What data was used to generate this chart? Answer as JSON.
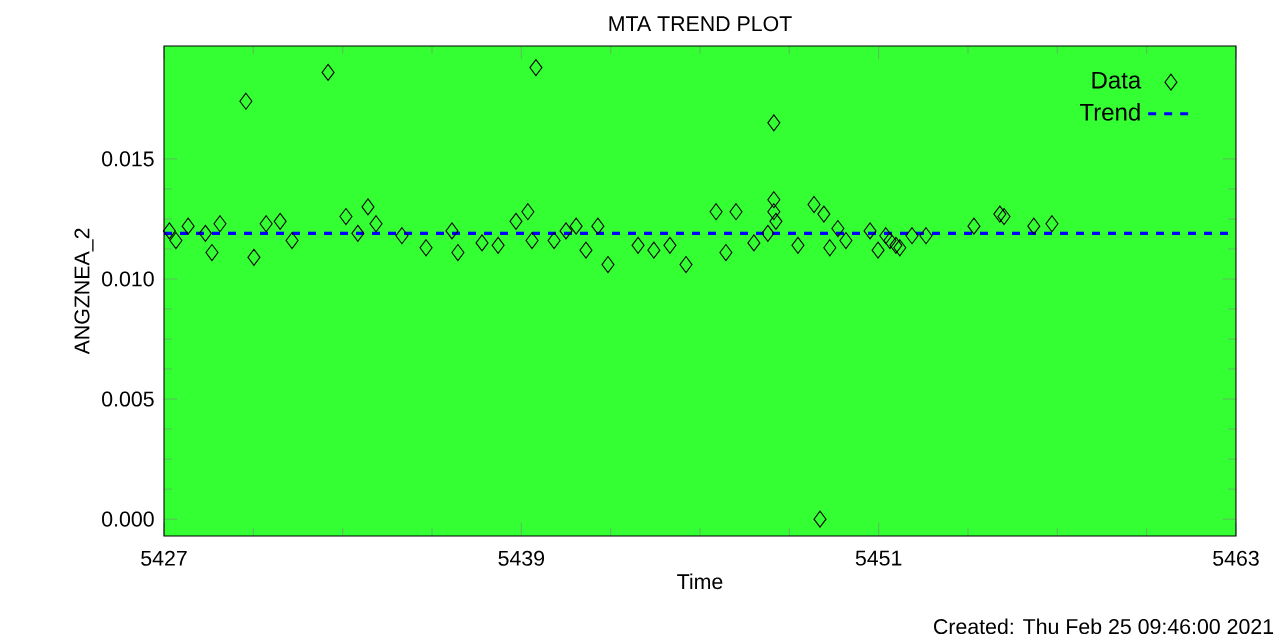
{
  "chart_data": {
    "type": "scatter",
    "title": "MTA TREND PLOT",
    "xlabel": "Time",
    "ylabel": "ANGZNEA_2",
    "xlim": [
      5427,
      5463
    ],
    "xticks": [
      5427,
      5439,
      5451,
      5463
    ],
    "ylim": [
      -0.0007,
      0.0197
    ],
    "yticks": [
      {
        "value": 0,
        "label": "0.000"
      },
      {
        "value": 0.005,
        "label": "0.005"
      },
      {
        "value": 0.01,
        "label": "0.010"
      },
      {
        "value": 0.015,
        "label": "0.015"
      }
    ],
    "grid": false,
    "legend": "top right",
    "annotations": [
      "Created: Thu Feb 25 09:46:00 2021"
    ],
    "series": [
      {
        "name": "Data",
        "type": "scatter",
        "marker": "diamond",
        "color": "#000000",
        "x": [
          5427.18,
          5427.4,
          5427.81,
          5428.39,
          5428.61,
          5428.88,
          5429.75,
          5430.02,
          5430.43,
          5430.9,
          5431.3,
          5432.51,
          5433.11,
          5433.51,
          5433.85,
          5434.12,
          5434.99,
          5435.8,
          5436.67,
          5436.87,
          5437.68,
          5438.22,
          5438.82,
          5439.22,
          5439.36,
          5439.49,
          5440.1,
          5440.5,
          5440.84,
          5441.17,
          5441.57,
          5441.91,
          5442.92,
          5443.45,
          5443.99,
          5444.53,
          5445.54,
          5445.87,
          5446.21,
          5446.81,
          5447.28,
          5447.48,
          5447.48,
          5447.48,
          5447.55,
          5448.29,
          5448.83,
          5449.16,
          5449.03,
          5449.36,
          5449.63,
          5449.9,
          5450.71,
          5450.98,
          5451.24,
          5451.38,
          5451.58,
          5451.71,
          5452.12,
          5452.59,
          5454.2,
          5455.07,
          5455.21,
          5456.21,
          5456.82
        ],
        "values": [
          0.012,
          0.0116,
          0.0122,
          0.0119,
          0.0111,
          0.0123,
          0.0174,
          0.0109,
          0.0123,
          0.0124,
          0.0116,
          0.0186,
          0.0126,
          0.0119,
          0.013,
          0.0123,
          0.0118,
          0.0113,
          0.012,
          0.0111,
          0.0115,
          0.0114,
          0.0124,
          0.0128,
          0.0116,
          0.0188,
          0.0116,
          0.012,
          0.0122,
          0.0112,
          0.0122,
          0.0106,
          0.0114,
          0.0112,
          0.0114,
          0.0106,
          0.0128,
          0.0111,
          0.0128,
          0.0115,
          0.0119,
          0.0165,
          0.0133,
          0.0128,
          0.0124,
          0.0114,
          0.0131,
          0.0127,
          0.0,
          0.0113,
          0.0121,
          0.0116,
          0.012,
          0.0112,
          0.0118,
          0.0116,
          0.0114,
          0.0113,
          0.0118,
          0.0118,
          0.0122,
          0.0127,
          0.0126,
          0.0122,
          0.0123
        ]
      },
      {
        "name": "Trend",
        "type": "line",
        "line_style": "dashed",
        "color": "#0000ff",
        "x": [
          5427,
          5463
        ],
        "values": [
          0.0119,
          0.0119
        ]
      }
    ]
  }
}
